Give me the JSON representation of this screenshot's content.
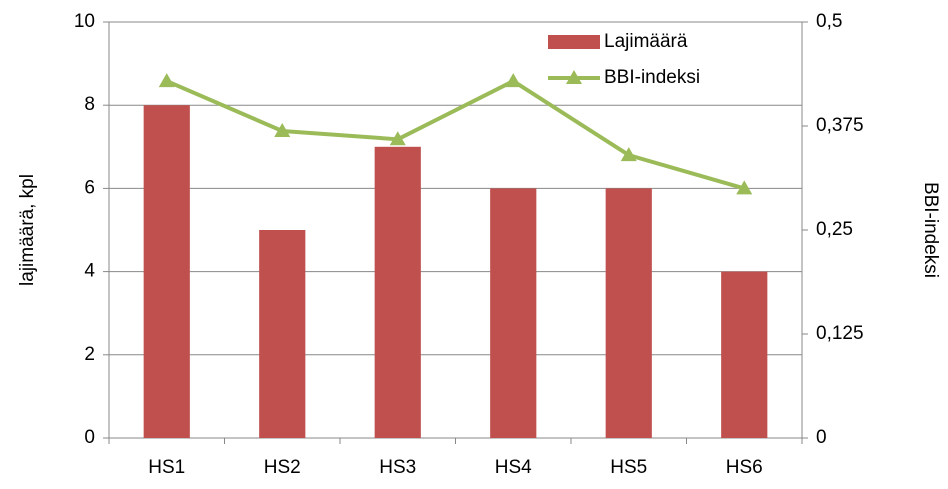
{
  "chart_data": {
    "type": "bar",
    "categories": [
      "HS1",
      "HS2",
      "HS3",
      "HS4",
      "HS5",
      "HS6"
    ],
    "series": [
      {
        "name": "Lajimäärä",
        "type": "bar",
        "color": "#c0504d",
        "values": [
          8,
          5,
          7,
          6,
          6,
          4
        ]
      },
      {
        "name": "BBI-indeksi",
        "type": "line",
        "axis": "y2",
        "color": "#9bbb59",
        "values": [
          0.429,
          0.369,
          0.359,
          0.429,
          0.34,
          0.3
        ]
      }
    ],
    "ylabel": "lajimäärä, kpl",
    "y2label": "BBI-indeksi",
    "ylim": [
      0,
      10
    ],
    "yticks": [
      0,
      2,
      4,
      6,
      8,
      10
    ],
    "y2lim": [
      0,
      0.5
    ],
    "y2ticks": [
      0,
      {
        "value": 0.125,
        "label": "0,125"
      },
      {
        "value": 0.25,
        "label": "0,25"
      },
      {
        "value": 0.375,
        "label": "0,375"
      },
      {
        "value": 0.5,
        "label": "0,5"
      }
    ],
    "grid": true,
    "legend": "top-right"
  }
}
